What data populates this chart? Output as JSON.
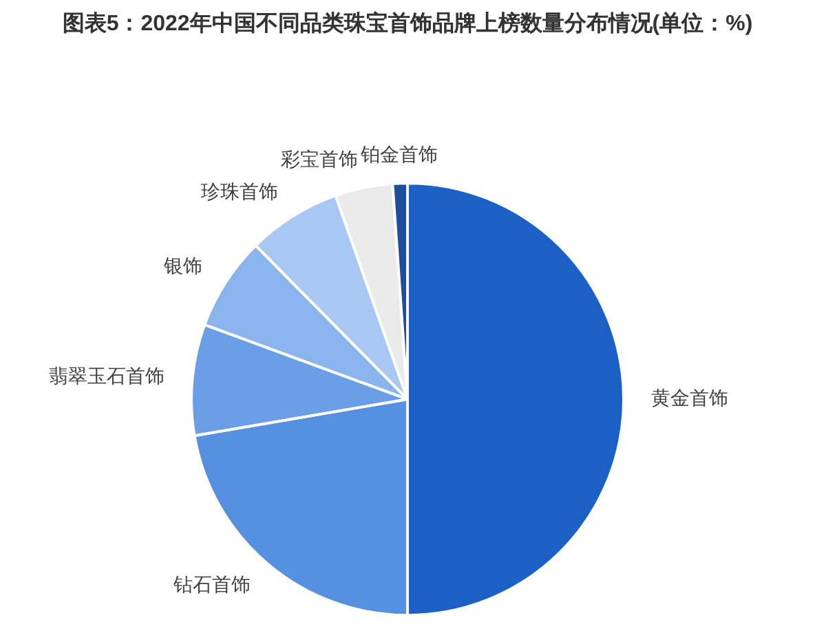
{
  "chart_data": {
    "type": "pie",
    "title": "图表5：2022年中国不同品类珠宝首饰品牌上榜数量分布情况(单位：%)",
    "categories": [
      "黄金首饰",
      "钻石首饰",
      "翡翠玉石首饰",
      "银饰",
      "珍珠首饰",
      "彩宝首饰",
      "铂金首饰"
    ],
    "values": [
      50,
      22.3,
      8.3,
      7.0,
      7.0,
      4.3,
      1.1
    ],
    "colors": [
      "#1c5fc5",
      "#5591e0",
      "#6a9ee6",
      "#8ab4ed",
      "#a8c8f3",
      "#eaeaea",
      "#1d4f9e"
    ],
    "legend": false
  }
}
